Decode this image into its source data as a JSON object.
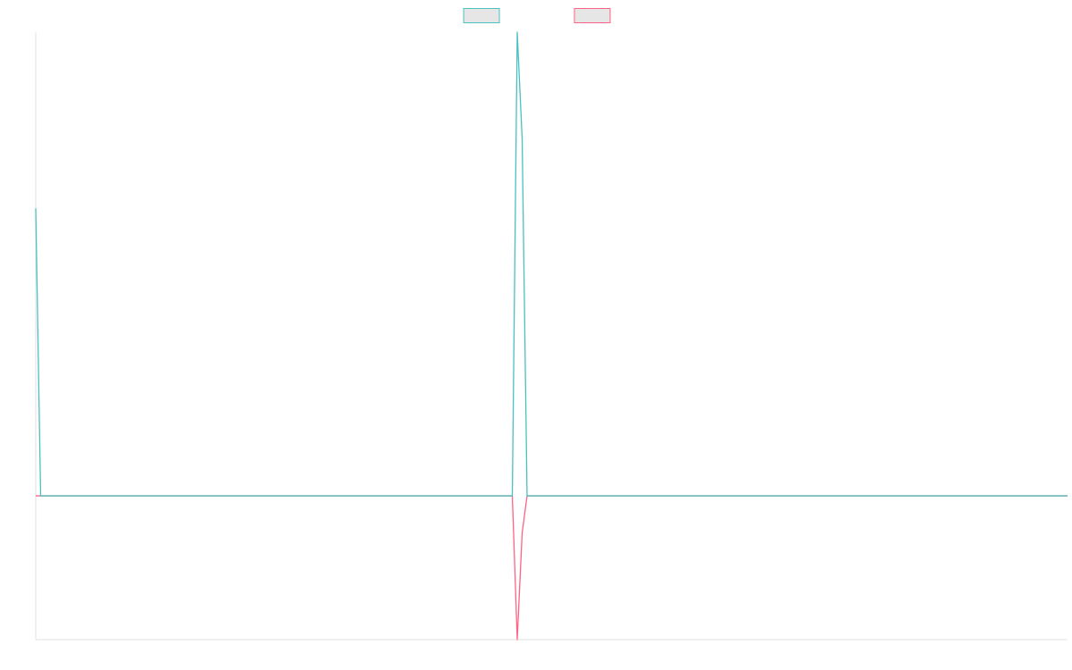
{
  "chart_data": {
    "type": "line",
    "title": "",
    "xlabel": "",
    "ylabel": "",
    "x": [
      0,
      1,
      2,
      3,
      4,
      5,
      6,
      7,
      8,
      9,
      10,
      11,
      12,
      13,
      14,
      15,
      16,
      17,
      18,
      19,
      20,
      21,
      22,
      23,
      24,
      25,
      26,
      27,
      28,
      29,
      30,
      31,
      32,
      33,
      34,
      35,
      36,
      37,
      38,
      39,
      40,
      41,
      42,
      43,
      44,
      45,
      46,
      47,
      48,
      49,
      50,
      51,
      52,
      53,
      54,
      55,
      56,
      57,
      58,
      59,
      60,
      61,
      62,
      63,
      64,
      65,
      66,
      67,
      68,
      69,
      70,
      71,
      72,
      73,
      74,
      75,
      76,
      77,
      78,
      79,
      80,
      81,
      82,
      83,
      84,
      85,
      86,
      87,
      88,
      89,
      90,
      91,
      92,
      93,
      94,
      95,
      96,
      97,
      98,
      99,
      100,
      101,
      102,
      103,
      104,
      105,
      106,
      107,
      108,
      109,
      110,
      111,
      112,
      113,
      114,
      115,
      116,
      117,
      118,
      119,
      120,
      121,
      122,
      123,
      124,
      125,
      126,
      127,
      128,
      129,
      130,
      131,
      132,
      133,
      134,
      135,
      136,
      137,
      138,
      139,
      140,
      141,
      142,
      143,
      144,
      145,
      146,
      147,
      148,
      149,
      150,
      151,
      152,
      153,
      154,
      155,
      156,
      157,
      158,
      159,
      160,
      161,
      162,
      163,
      164,
      165,
      166,
      167,
      168,
      169,
      170,
      171,
      172,
      173,
      174,
      175,
      176,
      177,
      178,
      179,
      180,
      181,
      182,
      183,
      184,
      185,
      186,
      187,
      188,
      189,
      190,
      191,
      192,
      193,
      194,
      195,
      196,
      197,
      198,
      199,
      200,
      201,
      202,
      203,
      204,
      205,
      206,
      207,
      208,
      209,
      210
    ],
    "series": [
      {
        "name": "",
        "color": "#4bc0c0",
        "spikes": [
          [
            0,
            62
          ],
          [
            98,
            100
          ],
          [
            99,
            77
          ]
        ]
      },
      {
        "name": "",
        "color": "#ff6384",
        "spikes": [
          [
            98,
            -31
          ],
          [
            99,
            -8
          ]
        ]
      }
    ],
    "baseline": 0,
    "ylim": [
      -31,
      100
    ],
    "grid": false,
    "legend": "top-center",
    "axis_color": "#e0e0e0",
    "legend_fill": "#e6e6e6"
  }
}
